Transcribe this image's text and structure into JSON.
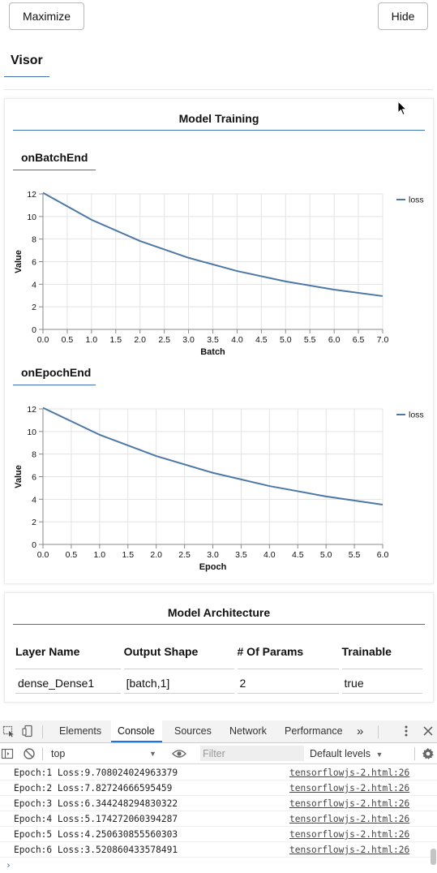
{
  "header": {
    "maximize_label": "Maximize",
    "hide_label": "Hide",
    "visor_tab": "Visor"
  },
  "training_panel": {
    "title": "Model Training",
    "charts": [
      {
        "subtitle": "onBatchEnd"
      },
      {
        "subtitle": "onEpochEnd"
      }
    ]
  },
  "chart_data": [
    {
      "type": "line",
      "title": "onBatchEnd",
      "xlabel": "Batch",
      "ylabel": "Value",
      "xlim": [
        0,
        7
      ],
      "ylim": [
        0,
        12
      ],
      "x_ticks": [
        "0.0",
        "0.5",
        "1.0",
        "1.5",
        "2.0",
        "2.5",
        "3.0",
        "3.5",
        "4.0",
        "4.5",
        "5.0",
        "5.5",
        "6.0",
        "6.5",
        "7.0"
      ],
      "y_ticks": [
        "0",
        "2",
        "4",
        "6",
        "8",
        "10",
        "12"
      ],
      "grid": true,
      "legend": "top-right",
      "color": "#4c78a8",
      "series": [
        {
          "name": "loss",
          "x": [
            0,
            1,
            2,
            3,
            4,
            5,
            6,
            7
          ],
          "values": [
            12.1,
            9.71,
            7.83,
            6.34,
            5.17,
            4.25,
            3.52,
            2.95
          ]
        }
      ]
    },
    {
      "type": "line",
      "title": "onEpochEnd",
      "xlabel": "Epoch",
      "ylabel": "Value",
      "xlim": [
        0,
        6
      ],
      "ylim": [
        0,
        12
      ],
      "x_ticks": [
        "0.0",
        "0.5",
        "1.0",
        "1.5",
        "2.0",
        "2.5",
        "3.0",
        "3.5",
        "4.0",
        "4.5",
        "5.0",
        "5.5",
        "6.0"
      ],
      "y_ticks": [
        "0",
        "2",
        "4",
        "6",
        "8",
        "10",
        "12"
      ],
      "grid": true,
      "legend": "top-right",
      "color": "#4c78a8",
      "series": [
        {
          "name": "loss",
          "x": [
            0,
            1,
            2,
            3,
            4,
            5,
            6
          ],
          "values": [
            12.1,
            9.71,
            7.83,
            6.34,
            5.17,
            4.25,
            3.52
          ]
        }
      ]
    }
  ],
  "architecture": {
    "title": "Model Architecture",
    "columns": [
      "Layer Name",
      "Output Shape",
      "# Of Params",
      "Trainable"
    ],
    "rows": [
      [
        "dense_Dense1",
        "[batch,1]",
        "2",
        "true"
      ]
    ]
  },
  "devtools": {
    "tabs": [
      "Elements",
      "Console",
      "Sources",
      "Network",
      "Performance"
    ],
    "active_tab": "Console",
    "more_tabs": "»",
    "context": "top",
    "filter_placeholder": "Filter",
    "levels": "Default levels",
    "console_lines": [
      {
        "msg": "Epoch:1 Loss:9.708024024963379",
        "src": "tensorflowjs-2.html:26"
      },
      {
        "msg": "Epoch:2 Loss:7.82724666595459",
        "src": "tensorflowjs-2.html:26"
      },
      {
        "msg": "Epoch:3 Loss:6.344248294830322",
        "src": "tensorflowjs-2.html:26"
      },
      {
        "msg": "Epoch:4 Loss:5.174272060394287",
        "src": "tensorflowjs-2.html:26"
      },
      {
        "msg": "Epoch:5 Loss:4.250630855560303",
        "src": "tensorflowjs-2.html:26"
      },
      {
        "msg": "Epoch:6 Loss:3.520860433578491",
        "src": "tensorflowjs-2.html:26"
      }
    ]
  }
}
